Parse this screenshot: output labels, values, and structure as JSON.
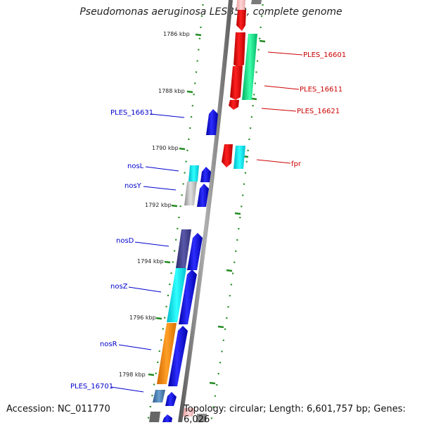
{
  "title": "Pseudomonas aeruginosa LESB58, complete genome",
  "footer": {
    "accession": "Accession: NC_011770",
    "topology": "Topology: circular; Length: 6,601,757 bp; Genes: 6,026"
  },
  "ruler_labels": [
    "1786 kbp",
    "1788 kbp",
    "1790 kbp",
    "1792 kbp",
    "1794 kbp",
    "1796 kbp",
    "1798 kbp"
  ],
  "genes_left": [
    "PLES_16631",
    "nosL",
    "nosY",
    "nosD",
    "nosZ",
    "nosR",
    "PLES_16701"
  ],
  "genes_right": [
    "PLES_16601",
    "PLES_16611",
    "PLES_16621",
    "fpr"
  ],
  "colors": {
    "backbone": "#888888",
    "tick_green": "#228b22",
    "forward_arrows": "#0000dd",
    "reverse_arrows": "#ee0000",
    "label_left": "#0000cc",
    "label_right": "#cc0000"
  }
}
